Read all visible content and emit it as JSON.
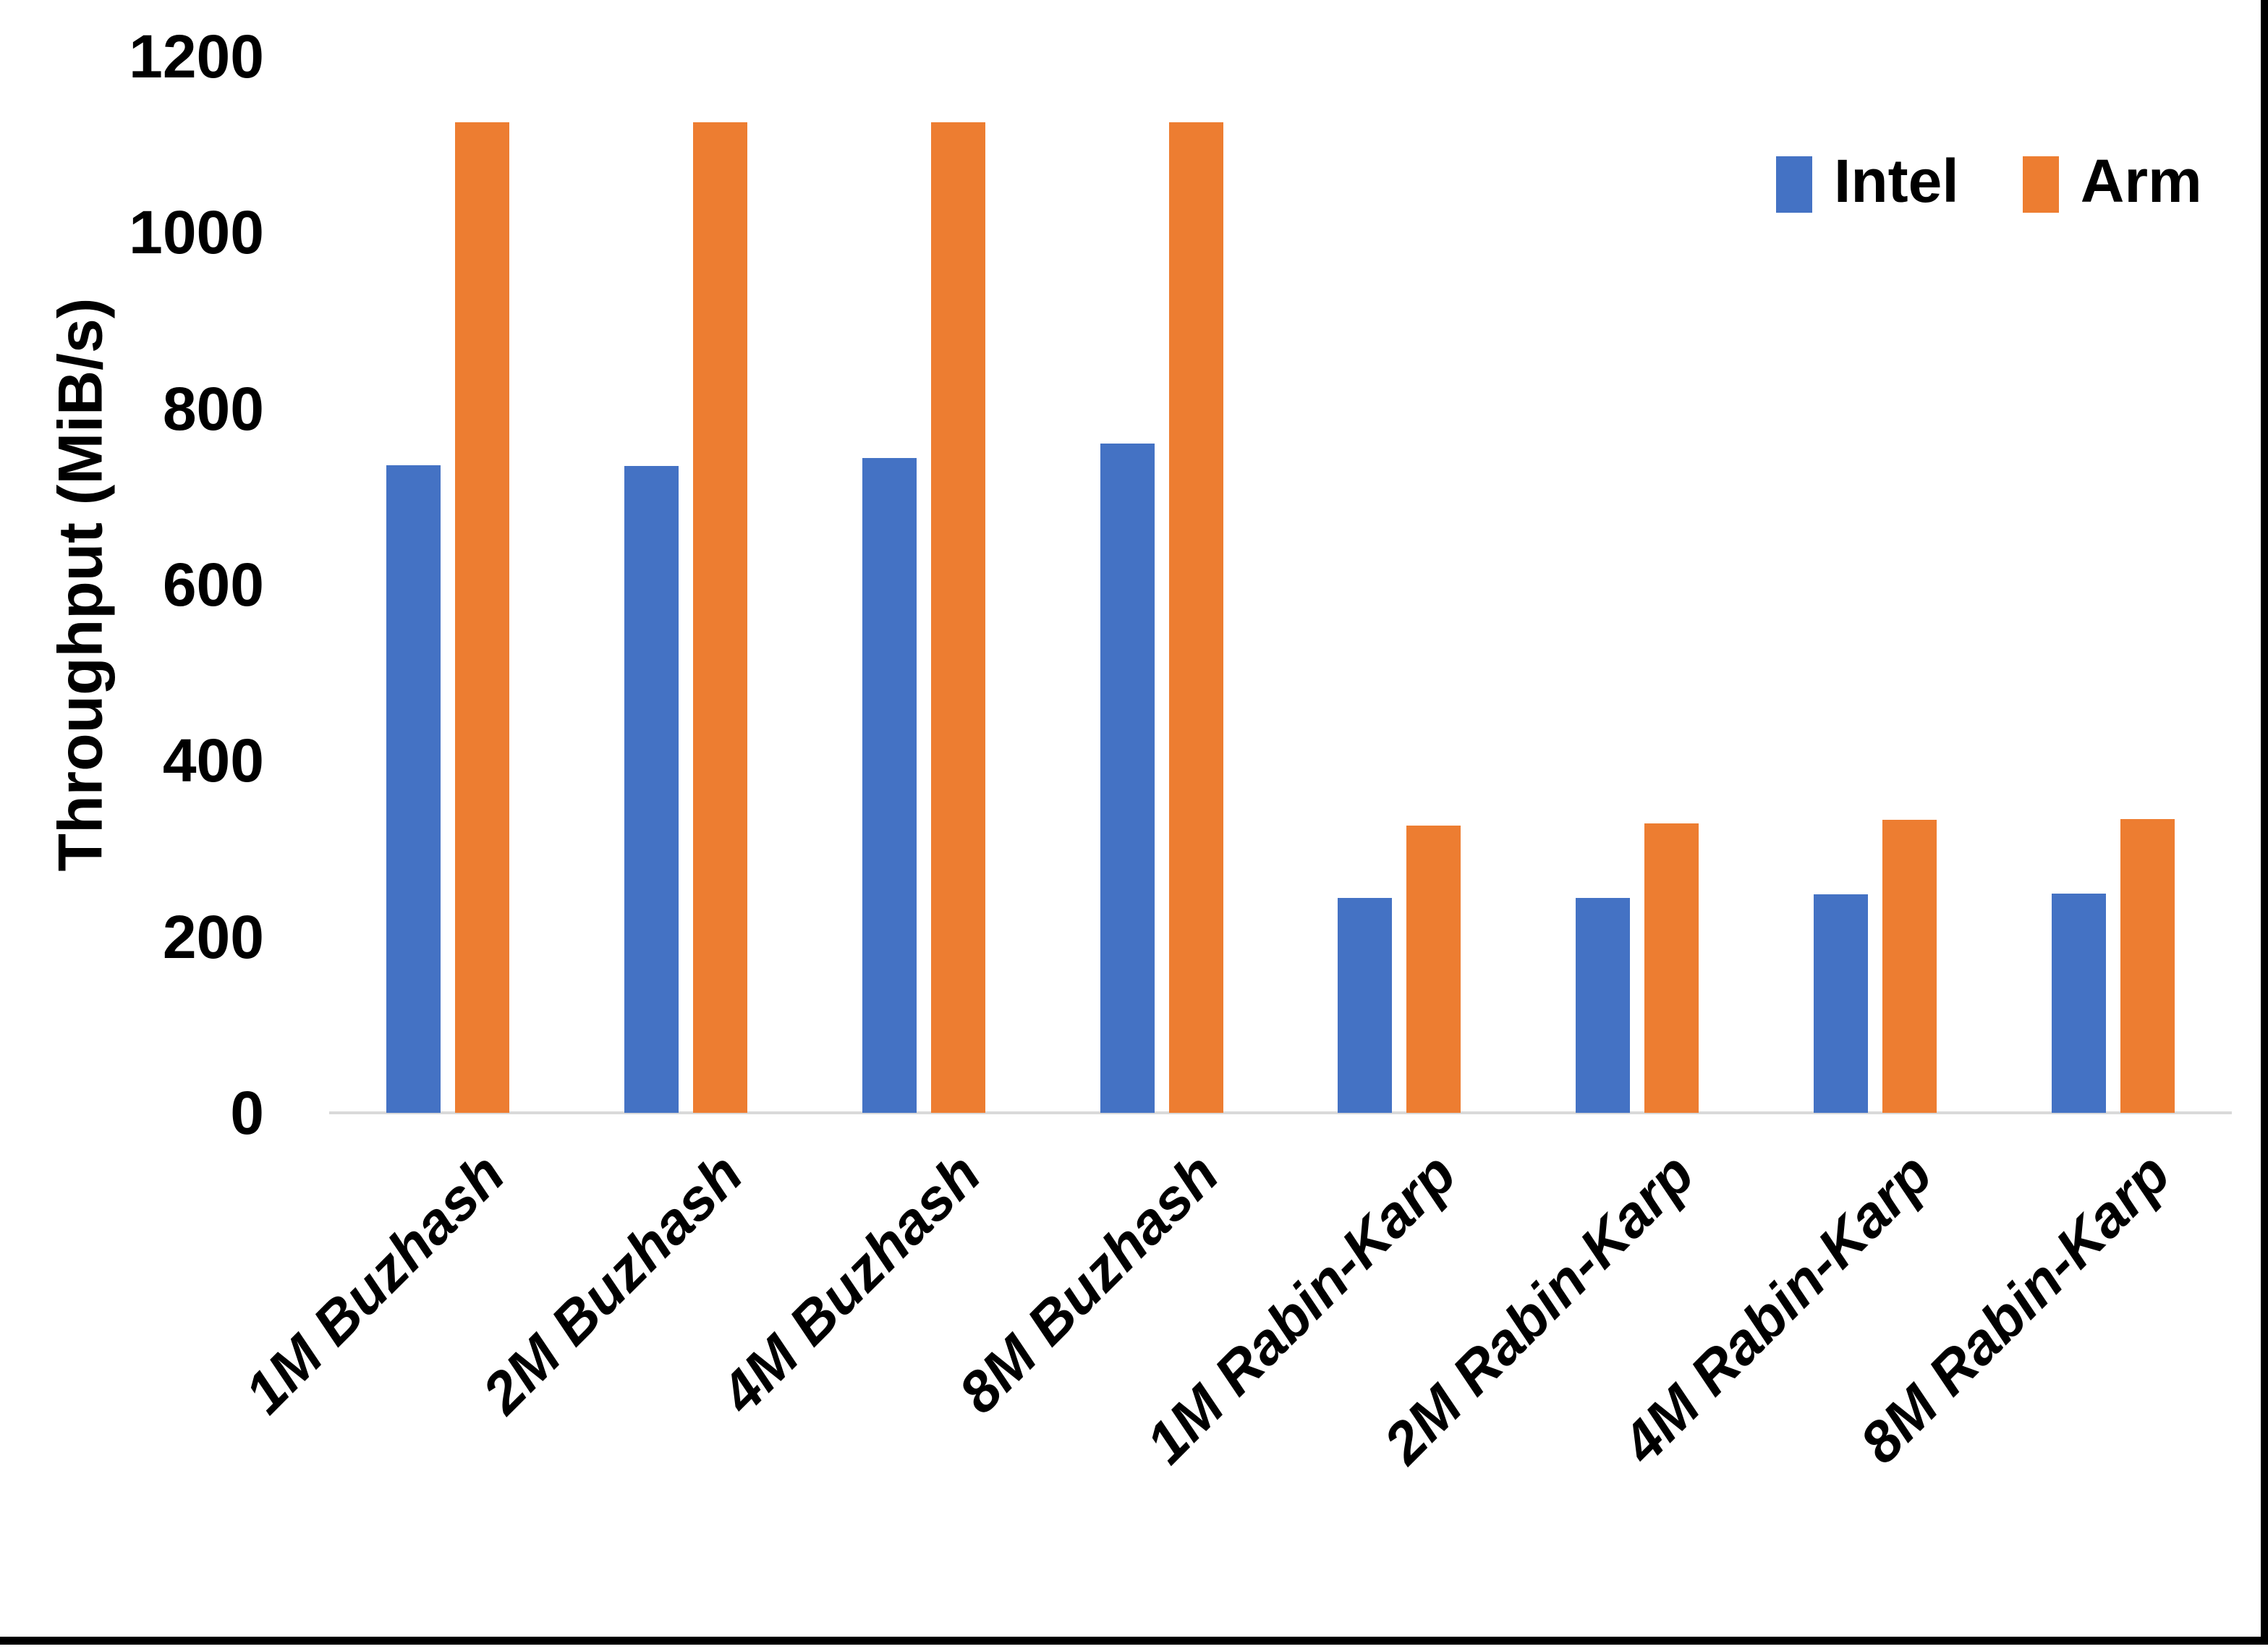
{
  "page": {
    "background": "#ffffff",
    "frame_border_color": "#000000"
  },
  "chart_data": {
    "type": "bar",
    "title": "",
    "xlabel": "",
    "ylabel": "Throughput (MiB/s)",
    "ylim": [
      0,
      1200
    ],
    "yticks": [
      0,
      200,
      400,
      600,
      800,
      1000,
      1200
    ],
    "grid": false,
    "legend_position": "top-right",
    "axis_line_color": "#D9D9D9",
    "text_color": "#000000",
    "categories": [
      "1M Buzhash",
      "2M Buzhash",
      "4M Buzhash",
      "8M Buzhash",
      "1M Rabin-Karp",
      "2M Rabin-Karp",
      "4M Rabin-Karp",
      "8M Rabin-Karp"
    ],
    "series": [
      {
        "name": "Intel",
        "color": "#4472C4",
        "values": [
          736,
          735,
          744,
          760,
          244,
          244,
          248,
          249
        ]
      },
      {
        "name": "Arm",
        "color": "#ED7D31",
        "values": [
          1125,
          1125,
          1125,
          1125,
          326,
          329,
          333,
          334
        ]
      }
    ]
  }
}
